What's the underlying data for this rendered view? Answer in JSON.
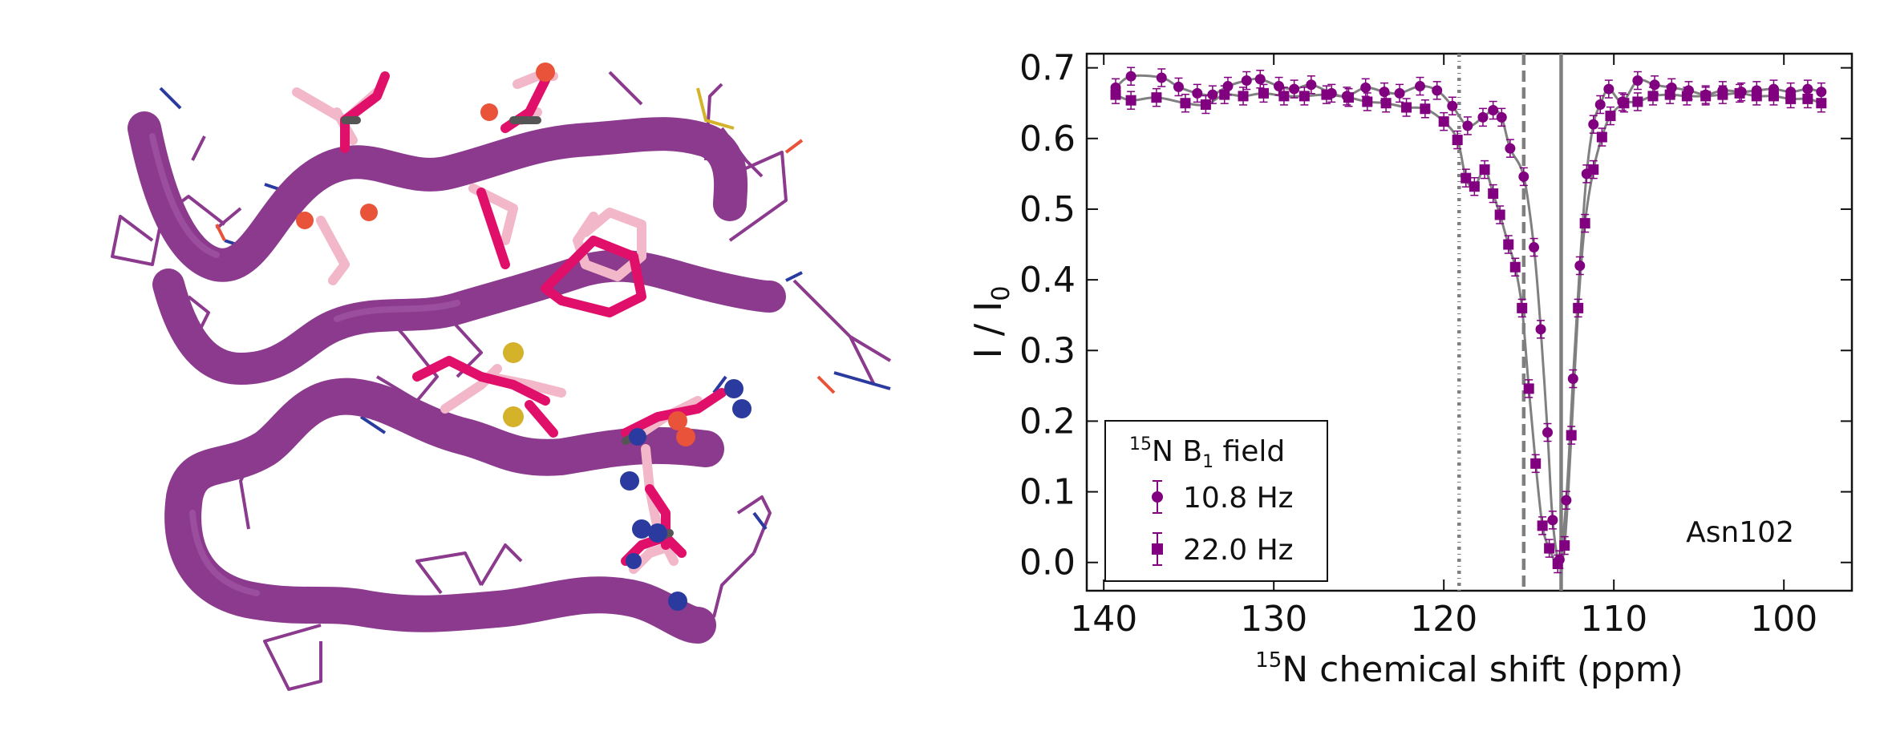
{
  "structure_panel": {
    "icon": "protein-backbone-cartoon-icon",
    "colors": {
      "backbone": "#8B3A8E",
      "sidechain_dark": "#E0106A",
      "sidechain_light": "#F2B7C8",
      "oxygen": "#E8533A",
      "nitrogen": "#2B3A9E",
      "sulfur": "#D4B32A"
    }
  },
  "chart_data": {
    "type": "scatter",
    "xlabel_isotope": "15",
    "xlabel_text": "N chemical shift (ppm)",
    "ylabel_main": "I / I",
    "ylabel_sub": "0",
    "xlim": [
      141,
      96
    ],
    "ylim": [
      -0.04,
      0.72
    ],
    "x_reversed": true,
    "xticks": [
      140,
      130,
      120,
      110,
      100
    ],
    "xtick_labels": [
      "140",
      "130",
      "120",
      "110",
      "100"
    ],
    "yticks": [
      0.0,
      0.1,
      0.2,
      0.3,
      0.4,
      0.5,
      0.6,
      0.7
    ],
    "ytick_labels": [
      "0.0",
      "0.1",
      "0.2",
      "0.3",
      "0.4",
      "0.5",
      "0.6",
      "0.7"
    ],
    "grid": false,
    "legend_title_isotope": "15",
    "legend_title_text": "N B",
    "legend_title_sub": "1",
    "legend_title_tail": " field",
    "legend_position": "lower-left",
    "annotation": "Asn102",
    "vertical_lines": [
      {
        "x": 119.1,
        "style": "dashdot",
        "color": "#7f7f7f"
      },
      {
        "x": 115.3,
        "style": "dashed",
        "color": "#7f7f7f"
      },
      {
        "x": 113.1,
        "style": "solid",
        "color": "#7f7f7f"
      }
    ],
    "series": [
      {
        "name": "10.8 Hz",
        "marker": "circle",
        "color": "#800080",
        "points": [
          [
            139.3,
            0.672
          ],
          [
            138.4,
            0.688
          ],
          [
            136.6,
            0.686
          ],
          [
            135.6,
            0.673
          ],
          [
            134.5,
            0.664
          ],
          [
            133.6,
            0.662
          ],
          [
            132.7,
            0.674
          ],
          [
            131.6,
            0.682
          ],
          [
            130.8,
            0.684
          ],
          [
            129.7,
            0.674
          ],
          [
            128.8,
            0.67
          ],
          [
            127.8,
            0.676
          ],
          [
            126.6,
            0.664
          ],
          [
            125.7,
            0.66
          ],
          [
            124.6,
            0.672
          ],
          [
            123.5,
            0.666
          ],
          [
            122.6,
            0.664
          ],
          [
            121.4,
            0.674
          ],
          [
            120.4,
            0.668
          ],
          [
            119.5,
            0.646
          ],
          [
            118.6,
            0.618
          ],
          [
            117.7,
            0.63
          ],
          [
            117.1,
            0.64
          ],
          [
            116.6,
            0.63
          ],
          [
            116.1,
            0.586
          ],
          [
            115.3,
            0.546
          ],
          [
            114.7,
            0.446
          ],
          [
            114.3,
            0.33
          ],
          [
            113.9,
            0.184
          ],
          [
            113.6,
            0.06
          ],
          [
            113.2,
            0.004
          ],
          [
            112.8,
            0.088
          ],
          [
            112.4,
            0.26
          ],
          [
            112.0,
            0.42
          ],
          [
            111.6,
            0.55
          ],
          [
            111.2,
            0.62
          ],
          [
            110.8,
            0.648
          ],
          [
            110.3,
            0.67
          ],
          [
            109.5,
            0.652
          ],
          [
            108.6,
            0.682
          ],
          [
            107.6,
            0.676
          ],
          [
            106.6,
            0.672
          ],
          [
            105.6,
            0.668
          ],
          [
            104.6,
            0.662
          ],
          [
            103.6,
            0.668
          ],
          [
            102.5,
            0.666
          ],
          [
            101.6,
            0.668
          ],
          [
            100.6,
            0.67
          ],
          [
            99.6,
            0.666
          ],
          [
            98.6,
            0.67
          ],
          [
            97.8,
            0.666
          ]
        ]
      },
      {
        "name": "22.0 Hz",
        "marker": "square",
        "color": "#800080",
        "points": [
          [
            139.3,
            0.662
          ],
          [
            138.4,
            0.654
          ],
          [
            136.9,
            0.658
          ],
          [
            135.2,
            0.65
          ],
          [
            134.0,
            0.648
          ],
          [
            132.9,
            0.662
          ],
          [
            131.8,
            0.66
          ],
          [
            130.6,
            0.664
          ],
          [
            129.4,
            0.66
          ],
          [
            128.2,
            0.66
          ],
          [
            126.9,
            0.662
          ],
          [
            125.6,
            0.658
          ],
          [
            124.5,
            0.652
          ],
          [
            123.4,
            0.65
          ],
          [
            122.2,
            0.644
          ],
          [
            121.1,
            0.642
          ],
          [
            120.0,
            0.624
          ],
          [
            119.2,
            0.598
          ],
          [
            118.7,
            0.544
          ],
          [
            118.2,
            0.532
          ],
          [
            117.6,
            0.556
          ],
          [
            117.1,
            0.522
          ],
          [
            116.7,
            0.492
          ],
          [
            116.2,
            0.45
          ],
          [
            115.8,
            0.418
          ],
          [
            115.4,
            0.36
          ],
          [
            115.0,
            0.246
          ],
          [
            114.6,
            0.14
          ],
          [
            114.2,
            0.052
          ],
          [
            113.8,
            0.02
          ],
          [
            113.3,
            -0.002
          ],
          [
            112.9,
            0.024
          ],
          [
            112.5,
            0.18
          ],
          [
            112.1,
            0.36
          ],
          [
            111.7,
            0.48
          ],
          [
            111.2,
            0.556
          ],
          [
            110.7,
            0.602
          ],
          [
            110.2,
            0.632
          ],
          [
            109.4,
            0.65
          ],
          [
            108.6,
            0.652
          ],
          [
            107.7,
            0.66
          ],
          [
            106.7,
            0.662
          ],
          [
            105.7,
            0.66
          ],
          [
            104.6,
            0.66
          ],
          [
            103.6,
            0.662
          ],
          [
            102.6,
            0.664
          ],
          [
            101.6,
            0.66
          ],
          [
            100.6,
            0.66
          ],
          [
            99.6,
            0.656
          ],
          [
            98.6,
            0.656
          ],
          [
            97.8,
            0.65
          ]
        ]
      }
    ]
  }
}
